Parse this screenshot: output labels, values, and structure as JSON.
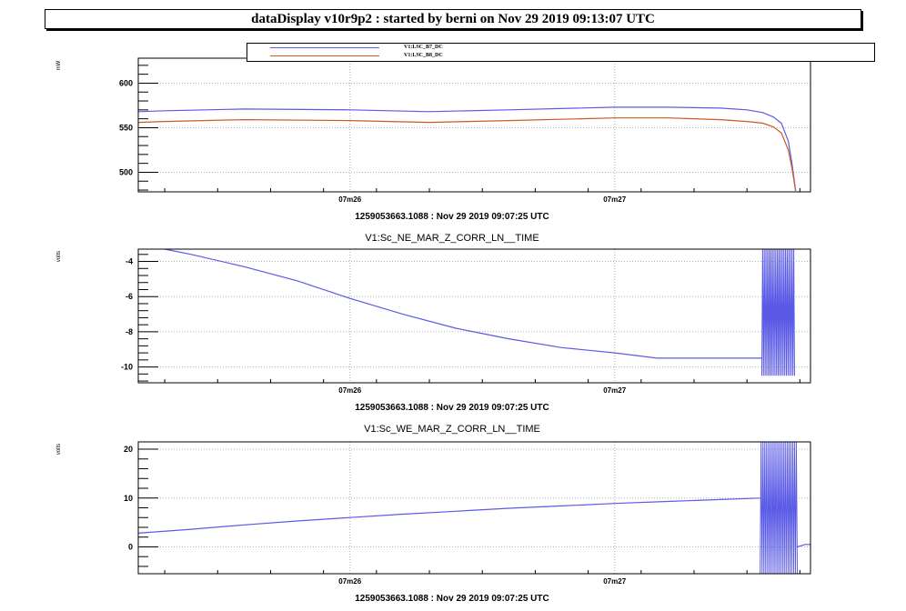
{
  "header": {
    "title": "dataDisplay v10r9p2 : started by berni on Nov 29 2019 09:13:07 UTC"
  },
  "legend": {
    "entries": [
      {
        "label": "V1:LSC_B7_DC",
        "color": "#5a5ae6"
      },
      {
        "label": "V1:LSC_B8_DC",
        "color": "#cc5a1e"
      }
    ]
  },
  "colors": {
    "series_blue": "#5a5ae6",
    "series_orange": "#cc5a1e",
    "grid": "#b0b0b0",
    "frame": "#000000"
  },
  "chart_data": [
    {
      "type": "line",
      "title": "",
      "ylabel": "mW",
      "xlabel": "1259053663.1088 : Nov 29 2019 09:07:25 UTC",
      "x_tick_labels": [
        "07m26",
        "07m27"
      ],
      "y_ticks": [
        500,
        550,
        600
      ],
      "ylim": [
        478,
        628
      ],
      "xlim": [
        0,
        127
      ],
      "x_ticks": [
        40,
        90
      ],
      "grid": true,
      "series": [
        {
          "name": "V1:LSC_B7_DC",
          "color": "#5a5ae6",
          "x": [
            0,
            5,
            20,
            40,
            55,
            70,
            90,
            100,
            110,
            115,
            118,
            120,
            121.5,
            122.8,
            123.5,
            124.2
          ],
          "y": [
            568,
            569,
            571,
            570,
            568,
            570,
            573,
            573,
            572,
            570,
            567,
            562,
            555,
            535,
            510,
            479
          ]
        },
        {
          "name": "V1:LSC_B8_DC",
          "color": "#cc5a1e",
          "x": [
            0,
            5,
            20,
            40,
            55,
            70,
            90,
            100,
            110,
            115,
            118,
            120,
            121.5,
            122.8,
            123.5,
            124.2
          ],
          "y": [
            556,
            557,
            559,
            558,
            556,
            558,
            561,
            561,
            559,
            557,
            555,
            551,
            544,
            525,
            505,
            479
          ]
        }
      ]
    },
    {
      "type": "line",
      "title": "V1:Sc_NE_MAR_Z_CORR_LN__TIME",
      "ylabel": "volts",
      "xlabel": "1259053663.1088 : Nov 29 2019 09:07:25 UTC",
      "x_tick_labels": [
        "07m26",
        "07m27"
      ],
      "y_ticks": [
        -4,
        -6,
        -8,
        -10
      ],
      "ylim": [
        -10.9,
        -3.3
      ],
      "xlim": [
        0,
        127
      ],
      "x_ticks": [
        40,
        90
      ],
      "grid": true,
      "series": [
        {
          "name": "",
          "color": "#5a5ae6",
          "x": [
            5,
            10,
            20,
            30,
            40,
            50,
            60,
            70,
            80,
            90,
            98,
            102,
            110,
            117.8
          ],
          "y": [
            -3.3,
            -3.6,
            -4.3,
            -5.1,
            -6.1,
            -7.0,
            -7.8,
            -8.4,
            -8.9,
            -9.2,
            -9.5,
            -9.5,
            -9.5,
            -9.5
          ]
        }
      ],
      "burst": {
        "x": [
          117.8,
          124
        ],
        "ylim": [
          -10.5,
          -3.3
        ]
      }
    },
    {
      "type": "line",
      "title": "V1:Sc_WE_MAR_Z_CORR_LN__TIME",
      "ylabel": "volts",
      "xlabel": "1259053663.1088 : Nov 29 2019 09:07:25 UTC",
      "x_tick_labels": [
        "07m26",
        "07m27"
      ],
      "y_ticks": [
        0,
        10,
        20
      ],
      "ylim": [
        -5.5,
        21.5
      ],
      "xlim": [
        0,
        127
      ],
      "x_ticks": [
        40,
        90
      ],
      "grid": true,
      "series": [
        {
          "name": "",
          "color": "#5a5ae6",
          "x": [
            0,
            10,
            20,
            30,
            40,
            50,
            60,
            70,
            80,
            90,
            100,
            110,
            117.5
          ],
          "y": [
            2.8,
            3.6,
            4.5,
            5.3,
            6.0,
            6.7,
            7.3,
            7.9,
            8.4,
            8.9,
            9.3,
            9.7,
            10.0
          ]
        }
      ],
      "burst": {
        "x": [
          117.5,
          124.5
        ],
        "ylim": [
          -5.5,
          21.5
        ]
      },
      "tail": {
        "x": [
          124.5,
          126,
          127
        ],
        "y": [
          0,
          0.5,
          0.5
        ]
      }
    }
  ]
}
